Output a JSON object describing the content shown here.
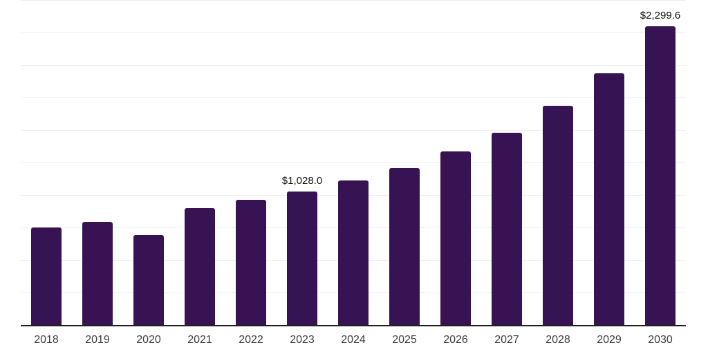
{
  "figure": {
    "background": "#ffffff"
  },
  "chart_data": {
    "type": "bar",
    "title": "",
    "xlabel": "",
    "ylabel": "",
    "categories": [
      "2018",
      "2019",
      "2020",
      "2021",
      "2022",
      "2023",
      "2024",
      "2025",
      "2026",
      "2027",
      "2028",
      "2029",
      "2030"
    ],
    "values": [
      750,
      790,
      690,
      900,
      965,
      1028.0,
      1110,
      1210,
      1335,
      1480,
      1685,
      1935,
      2299.6
    ],
    "point_labels": [
      "",
      "",
      "",
      "",
      "",
      "$1,028.0",
      "",
      "",
      "",
      "",
      "",
      "",
      "$2,299.6"
    ],
    "ylim": [
      0,
      2500
    ],
    "gridline_step": 250,
    "grid": "horizontal-only",
    "y_axis_tick_labels": "hidden",
    "legend": "none",
    "colors": {
      "bar": "#371353",
      "axis": "#1f1f1f",
      "gridline": "#ededed",
      "tick_label": "#3d3d3d",
      "value_label": "#111111",
      "background": "#ffffff"
    }
  }
}
